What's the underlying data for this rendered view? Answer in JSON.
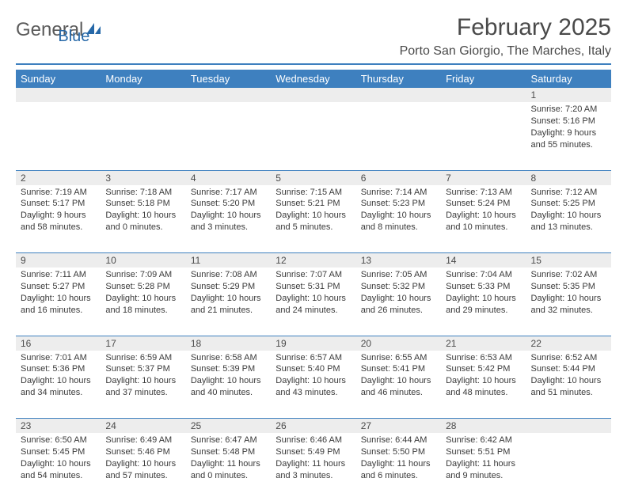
{
  "logo": {
    "general": "General",
    "blue": "Blue"
  },
  "title": "February 2025",
  "location": "Porto San Giorgio, The Marches, Italy",
  "colors": {
    "header_bg": "#3e80bf",
    "header_text": "#ffffff",
    "daynum_bg": "#ededed",
    "text": "#3a3a3a",
    "divider": "#3e80bf",
    "logo_gray": "#5b5b5b",
    "logo_blue": "#2668a8"
  },
  "typography": {
    "title_fontsize": 30,
    "location_fontsize": 16,
    "header_fontsize": 13,
    "cell_fontsize": 11
  },
  "weekdays": [
    "Sunday",
    "Monday",
    "Tuesday",
    "Wednesday",
    "Thursday",
    "Friday",
    "Saturday"
  ],
  "weeks": [
    [
      null,
      null,
      null,
      null,
      null,
      null,
      {
        "d": "1",
        "sr": "Sunrise: 7:20 AM",
        "ss": "Sunset: 5:16 PM",
        "dl": "Daylight: 9 hours and 55 minutes."
      }
    ],
    [
      {
        "d": "2",
        "sr": "Sunrise: 7:19 AM",
        "ss": "Sunset: 5:17 PM",
        "dl": "Daylight: 9 hours and 58 minutes."
      },
      {
        "d": "3",
        "sr": "Sunrise: 7:18 AM",
        "ss": "Sunset: 5:18 PM",
        "dl": "Daylight: 10 hours and 0 minutes."
      },
      {
        "d": "4",
        "sr": "Sunrise: 7:17 AM",
        "ss": "Sunset: 5:20 PM",
        "dl": "Daylight: 10 hours and 3 minutes."
      },
      {
        "d": "5",
        "sr": "Sunrise: 7:15 AM",
        "ss": "Sunset: 5:21 PM",
        "dl": "Daylight: 10 hours and 5 minutes."
      },
      {
        "d": "6",
        "sr": "Sunrise: 7:14 AM",
        "ss": "Sunset: 5:23 PM",
        "dl": "Daylight: 10 hours and 8 minutes."
      },
      {
        "d": "7",
        "sr": "Sunrise: 7:13 AM",
        "ss": "Sunset: 5:24 PM",
        "dl": "Daylight: 10 hours and 10 minutes."
      },
      {
        "d": "8",
        "sr": "Sunrise: 7:12 AM",
        "ss": "Sunset: 5:25 PM",
        "dl": "Daylight: 10 hours and 13 minutes."
      }
    ],
    [
      {
        "d": "9",
        "sr": "Sunrise: 7:11 AM",
        "ss": "Sunset: 5:27 PM",
        "dl": "Daylight: 10 hours and 16 minutes."
      },
      {
        "d": "10",
        "sr": "Sunrise: 7:09 AM",
        "ss": "Sunset: 5:28 PM",
        "dl": "Daylight: 10 hours and 18 minutes."
      },
      {
        "d": "11",
        "sr": "Sunrise: 7:08 AM",
        "ss": "Sunset: 5:29 PM",
        "dl": "Daylight: 10 hours and 21 minutes."
      },
      {
        "d": "12",
        "sr": "Sunrise: 7:07 AM",
        "ss": "Sunset: 5:31 PM",
        "dl": "Daylight: 10 hours and 24 minutes."
      },
      {
        "d": "13",
        "sr": "Sunrise: 7:05 AM",
        "ss": "Sunset: 5:32 PM",
        "dl": "Daylight: 10 hours and 26 minutes."
      },
      {
        "d": "14",
        "sr": "Sunrise: 7:04 AM",
        "ss": "Sunset: 5:33 PM",
        "dl": "Daylight: 10 hours and 29 minutes."
      },
      {
        "d": "15",
        "sr": "Sunrise: 7:02 AM",
        "ss": "Sunset: 5:35 PM",
        "dl": "Daylight: 10 hours and 32 minutes."
      }
    ],
    [
      {
        "d": "16",
        "sr": "Sunrise: 7:01 AM",
        "ss": "Sunset: 5:36 PM",
        "dl": "Daylight: 10 hours and 34 minutes."
      },
      {
        "d": "17",
        "sr": "Sunrise: 6:59 AM",
        "ss": "Sunset: 5:37 PM",
        "dl": "Daylight: 10 hours and 37 minutes."
      },
      {
        "d": "18",
        "sr": "Sunrise: 6:58 AM",
        "ss": "Sunset: 5:39 PM",
        "dl": "Daylight: 10 hours and 40 minutes."
      },
      {
        "d": "19",
        "sr": "Sunrise: 6:57 AM",
        "ss": "Sunset: 5:40 PM",
        "dl": "Daylight: 10 hours and 43 minutes."
      },
      {
        "d": "20",
        "sr": "Sunrise: 6:55 AM",
        "ss": "Sunset: 5:41 PM",
        "dl": "Daylight: 10 hours and 46 minutes."
      },
      {
        "d": "21",
        "sr": "Sunrise: 6:53 AM",
        "ss": "Sunset: 5:42 PM",
        "dl": "Daylight: 10 hours and 48 minutes."
      },
      {
        "d": "22",
        "sr": "Sunrise: 6:52 AM",
        "ss": "Sunset: 5:44 PM",
        "dl": "Daylight: 10 hours and 51 minutes."
      }
    ],
    [
      {
        "d": "23",
        "sr": "Sunrise: 6:50 AM",
        "ss": "Sunset: 5:45 PM",
        "dl": "Daylight: 10 hours and 54 minutes."
      },
      {
        "d": "24",
        "sr": "Sunrise: 6:49 AM",
        "ss": "Sunset: 5:46 PM",
        "dl": "Daylight: 10 hours and 57 minutes."
      },
      {
        "d": "25",
        "sr": "Sunrise: 6:47 AM",
        "ss": "Sunset: 5:48 PM",
        "dl": "Daylight: 11 hours and 0 minutes."
      },
      {
        "d": "26",
        "sr": "Sunrise: 6:46 AM",
        "ss": "Sunset: 5:49 PM",
        "dl": "Daylight: 11 hours and 3 minutes."
      },
      {
        "d": "27",
        "sr": "Sunrise: 6:44 AM",
        "ss": "Sunset: 5:50 PM",
        "dl": "Daylight: 11 hours and 6 minutes."
      },
      {
        "d": "28",
        "sr": "Sunrise: 6:42 AM",
        "ss": "Sunset: 5:51 PM",
        "dl": "Daylight: 11 hours and 9 minutes."
      },
      null
    ]
  ]
}
